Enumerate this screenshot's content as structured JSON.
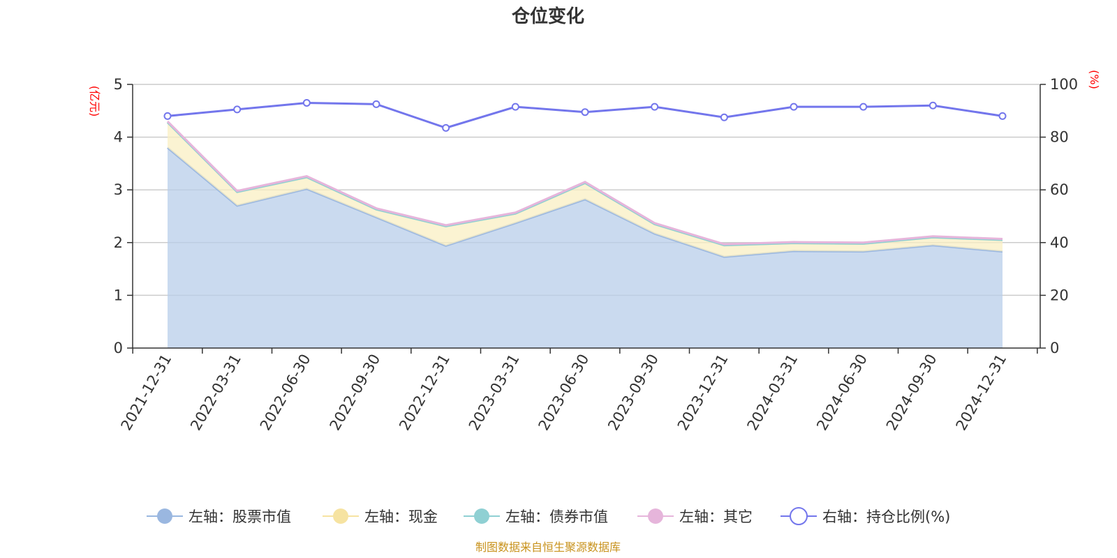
{
  "chart_data": {
    "type": "area",
    "title": "仓位变化",
    "categories": [
      "2021-12-31",
      "2022-03-31",
      "2022-06-30",
      "2022-09-30",
      "2022-12-31",
      "2023-03-31",
      "2023-06-30",
      "2023-09-30",
      "2023-12-31",
      "2024-03-31",
      "2024-06-30",
      "2024-09-30",
      "2024-12-31"
    ],
    "left_axis": {
      "label": "(亿元)",
      "ylim": [
        0,
        5
      ],
      "ticks": [
        "0",
        "1",
        "2",
        "3",
        "4",
        "5"
      ]
    },
    "right_axis": {
      "label": "(%)",
      "ylim": [
        0,
        100
      ],
      "ticks": [
        "0",
        "20",
        "40",
        "60",
        "80",
        "100"
      ]
    },
    "series": [
      {
        "name": "左轴：股票市值",
        "axis": "left",
        "stack": true,
        "color": "#9ab7e0",
        "fill": "#b8cdea",
        "values": [
          3.8,
          2.7,
          3.02,
          2.48,
          1.94,
          2.37,
          2.82,
          2.17,
          1.73,
          1.84,
          1.83,
          1.95,
          1.83
        ]
      },
      {
        "name": "左轴：现金",
        "axis": "left",
        "stack": true,
        "color": "#f6e3a1",
        "fill": "#faefc3",
        "values": [
          0.48,
          0.26,
          0.22,
          0.15,
          0.37,
          0.18,
          0.31,
          0.18,
          0.22,
          0.15,
          0.15,
          0.15,
          0.22
        ]
      },
      {
        "name": "左轴：债券市值",
        "axis": "left",
        "stack": true,
        "color": "#8fd0d3",
        "fill": "#8fd0d3",
        "values": [
          0,
          0,
          0,
          0,
          0,
          0,
          0,
          0,
          0,
          0,
          0,
          0,
          0
        ]
      },
      {
        "name": "左轴：其它",
        "axis": "left",
        "stack": true,
        "color": "#e6b5db",
        "fill": "#e6b5db",
        "values": [
          0.02,
          0.02,
          0.02,
          0.02,
          0.02,
          0.02,
          0.02,
          0.02,
          0.02,
          0.02,
          0.02,
          0.02,
          0.02
        ]
      },
      {
        "name": "右轴：持仓比例(%)",
        "axis": "right",
        "stack": false,
        "color": "#7376ec",
        "fill": "none",
        "values": [
          88.0,
          90.5,
          93.0,
          92.5,
          83.5,
          91.5,
          89.5,
          91.5,
          87.5,
          91.5,
          91.5,
          92.0,
          88.0
        ]
      }
    ],
    "legend_position": "bottom"
  },
  "footer": {
    "source": "制图数据来自恒生聚源数据库"
  }
}
